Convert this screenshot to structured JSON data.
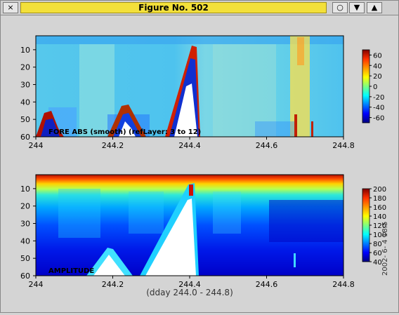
{
  "window": {
    "title": "Figure No. 502",
    "buttons": {
      "close": "×",
      "iconify": "○",
      "lower": "▼",
      "raise": "▲"
    }
  },
  "chart_data": [
    {
      "type": "heatmap",
      "title": "",
      "annotation": "FORE ABS (smooth) (refLayer: 3 to 12)",
      "xticks": [
        "244",
        "244.2",
        "244.4",
        "244.6",
        "244.8"
      ],
      "xlim": [
        244.0,
        244.8
      ],
      "yticks": [
        "10",
        "20",
        "30",
        "40",
        "50",
        "60"
      ],
      "ylim": [
        60,
        2
      ],
      "colorbar_ticks": [
        "60",
        "40",
        "20",
        "0",
        "-20",
        "-40",
        "-60"
      ],
      "colorbar_range": [
        -70,
        70
      ],
      "colormap": [
        "#00007f",
        "#0000ff",
        "#00bfff",
        "#7fffff",
        "#ffff00",
        "#ff7f00",
        "#7f0000"
      ]
    },
    {
      "type": "heatmap",
      "title": "",
      "annotation": "AMPLITUDE",
      "xticks": [
        "244",
        "244.2",
        "244.4",
        "244.6",
        "244.8"
      ],
      "xlim": [
        244.0,
        244.8
      ],
      "yticks": [
        "10",
        "20",
        "30",
        "40",
        "50",
        "60"
      ],
      "ylim": [
        60,
        2
      ],
      "colorbar_ticks": [
        "200",
        "180",
        "160",
        "140",
        "120",
        "100",
        "80",
        "60",
        "40"
      ],
      "colorbar_range": [
        40,
        200
      ],
      "xlabel": "(dday 244.0 - 244.8)",
      "timestamp": "2002- 6- 4 18:5",
      "colormap": [
        "#00007f",
        "#0000ff",
        "#00bfff",
        "#7fffff",
        "#ffff00",
        "#ff7f00",
        "#7f0000"
      ]
    }
  ]
}
